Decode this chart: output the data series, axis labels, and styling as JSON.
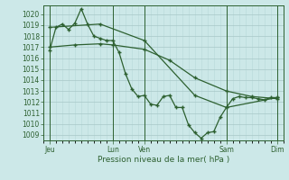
{
  "xlabel": "Pression niveau de la mer( hPa )",
  "bg_color": "#cce8e8",
  "grid_color_major": "#a8c8c8",
  "grid_color_minor": "#b8d8d8",
  "line_color": "#2d6030",
  "ylim": [
    1008.5,
    1020.8
  ],
  "yticks": [
    1009,
    1010,
    1011,
    1012,
    1013,
    1014,
    1015,
    1016,
    1017,
    1018,
    1019,
    1020
  ],
  "xlim": [
    0,
    228
  ],
  "xtick_positions": [
    6,
    66,
    96,
    174,
    222
  ],
  "xtick_labels": [
    "Jeu",
    "Lun",
    "Ven",
    "Sam",
    "Dim"
  ],
  "vlines": [
    6,
    66,
    96,
    174,
    222
  ],
  "series1_x": [
    6,
    12,
    18,
    24,
    30,
    36,
    42,
    48,
    54,
    60,
    66,
    72,
    78,
    84,
    90,
    96,
    102,
    108,
    114,
    120,
    126,
    132,
    138,
    144,
    150,
    156,
    162,
    168,
    174,
    180,
    186,
    192,
    198,
    204,
    210,
    216,
    222
  ],
  "series1_y": [
    1016.7,
    1018.8,
    1019.1,
    1018.6,
    1019.2,
    1020.5,
    1019.1,
    1018.0,
    1017.8,
    1017.6,
    1017.6,
    1016.5,
    1014.6,
    1013.2,
    1012.5,
    1012.6,
    1011.8,
    1011.7,
    1012.5,
    1012.6,
    1011.5,
    1011.5,
    1009.9,
    1009.2,
    1008.7,
    1009.2,
    1009.3,
    1010.6,
    1011.5,
    1012.3,
    1012.5,
    1012.4,
    1012.4,
    1012.3,
    1012.2,
    1012.4,
    1012.4
  ],
  "series2_x": [
    6,
    54,
    96,
    144,
    174,
    222
  ],
  "series2_y": [
    1018.8,
    1019.1,
    1017.6,
    1012.6,
    1011.5,
    1012.4
  ],
  "series3_x": [
    6,
    30,
    54,
    66,
    96,
    120,
    144,
    174,
    198,
    222
  ],
  "series3_y": [
    1017.0,
    1017.2,
    1017.3,
    1017.2,
    1016.8,
    1015.8,
    1014.2,
    1013.0,
    1012.5,
    1012.3
  ]
}
